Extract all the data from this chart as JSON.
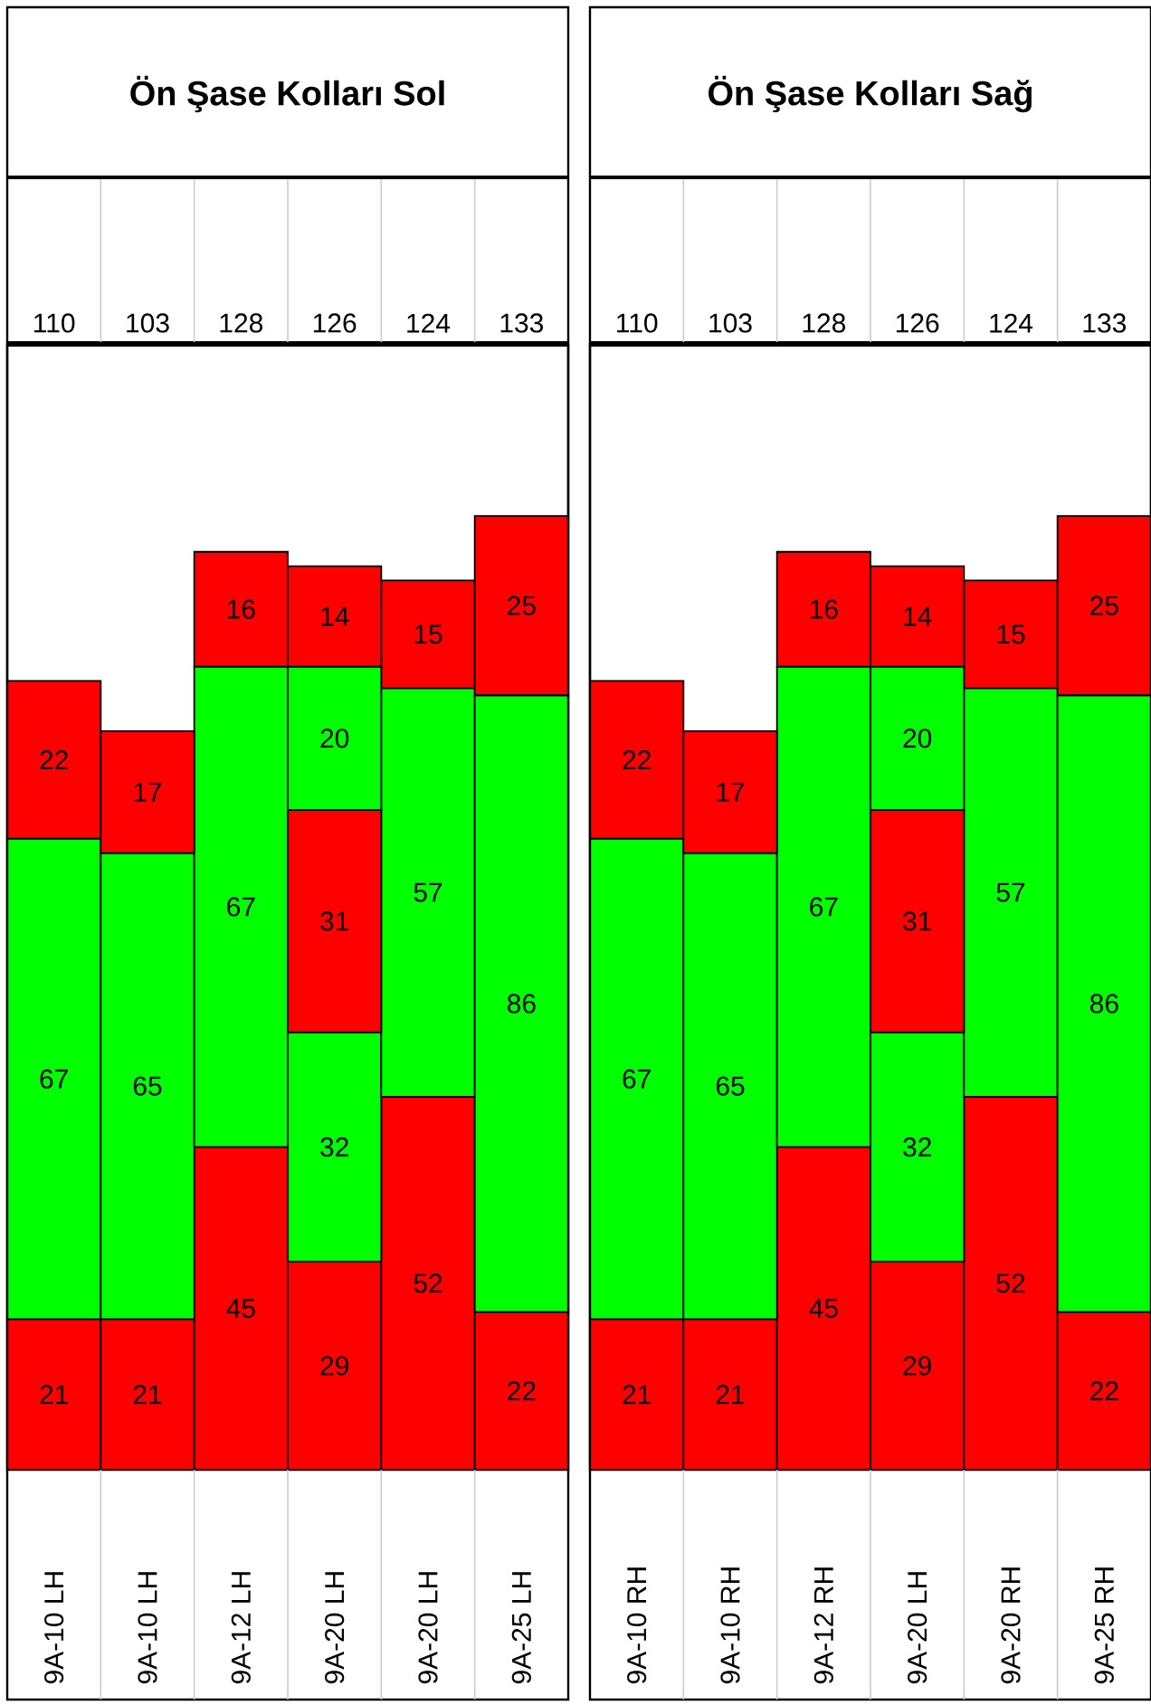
{
  "chart_data": [
    {
      "type": "bar",
      "stacked": true,
      "title": "Ön Şase Kolları Sol",
      "categories": [
        "9A-10 LH",
        "9A-10 LH",
        "9A-12 LH",
        "9A-20 LH",
        "9A-20 LH",
        "9A-25 LH"
      ],
      "series": [
        {
          "color": "#ff0000",
          "values": [
            21,
            21,
            45,
            29,
            52,
            22
          ]
        },
        {
          "color": "#00ff00",
          "values": [
            67,
            65,
            67,
            32,
            57,
            86
          ]
        },
        {
          "color": "#ff0000",
          "values": [
            22,
            17,
            16,
            31,
            15,
            25
          ]
        },
        {
          "color": "#00ff00",
          "values": [
            null,
            null,
            null,
            20,
            null,
            null
          ]
        },
        {
          "color": "#ff0000",
          "values": [
            null,
            null,
            null,
            14,
            null,
            null
          ]
        }
      ],
      "annotations": [
        "110",
        "103",
        "128",
        "126",
        "124",
        "133"
      ],
      "ylim": [
        0,
        157
      ],
      "tick_labels": "x",
      "data_labels": true
    },
    {
      "type": "bar",
      "stacked": true,
      "title": "Ön Şase Kolları Sağ",
      "categories": [
        "9A-10 RH",
        "9A-10 RH",
        "9A-12 RH",
        "9A-20 LH",
        "9A-20 RH",
        "9A-25 RH"
      ],
      "series": [
        {
          "color": "#ff0000",
          "values": [
            21,
            21,
            45,
            29,
            52,
            22
          ]
        },
        {
          "color": "#00ff00",
          "values": [
            67,
            65,
            67,
            32,
            57,
            86
          ]
        },
        {
          "color": "#ff0000",
          "values": [
            22,
            17,
            16,
            31,
            15,
            25
          ]
        },
        {
          "color": "#00ff00",
          "values": [
            null,
            null,
            null,
            20,
            null,
            null
          ]
        },
        {
          "color": "#ff0000",
          "values": [
            null,
            null,
            null,
            14,
            null,
            null
          ]
        }
      ],
      "annotations": [
        "110",
        "103",
        "128",
        "126",
        "124",
        "133"
      ],
      "ylim": [
        0,
        157
      ],
      "tick_labels": "x",
      "data_labels": true
    }
  ]
}
